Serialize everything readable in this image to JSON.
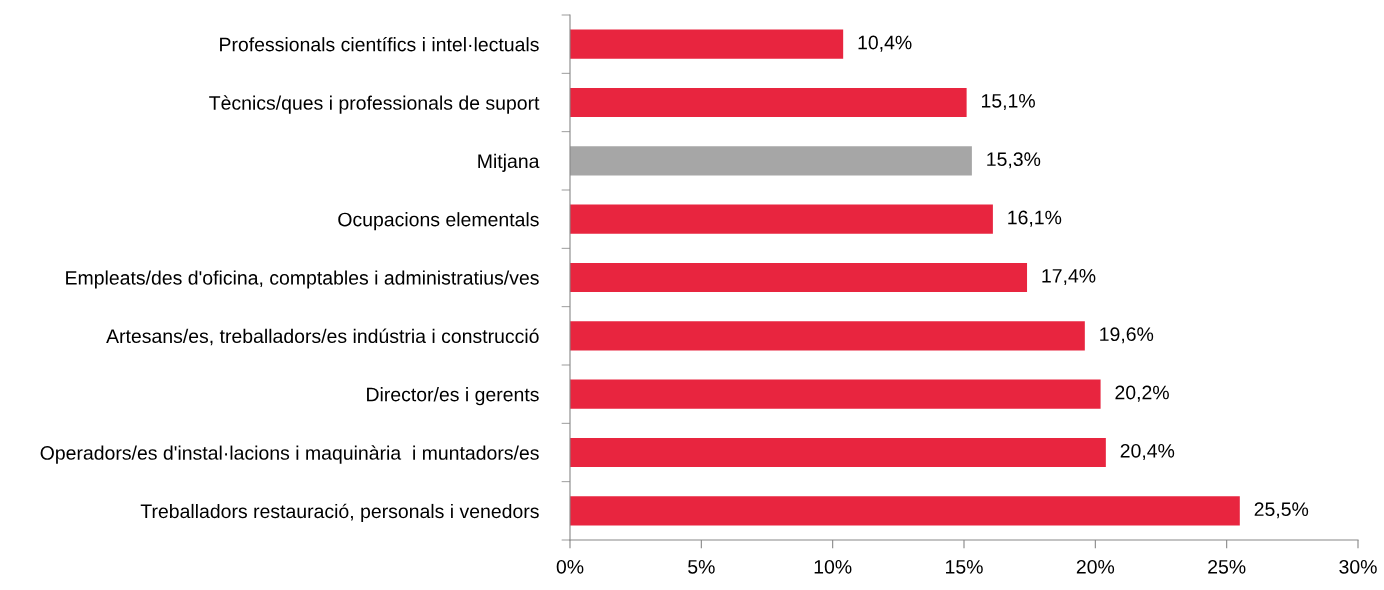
{
  "chart_data": {
    "type": "bar",
    "orientation": "horizontal",
    "categories": [
      "Professionals científics i intel·lectuals",
      "Tècnics/ques i professionals de suport",
      "Mitjana",
      "Ocupacions elementals",
      "Empleats/des d'oficina, comptables i administratius/ves",
      "Artesans/es, treballadors/es indústria i construcció",
      "Director/es i gerents",
      "Operadors/es d'instal·lacions i maquinària  i muntadors/es",
      "Treballadors restauració, personals i venedors"
    ],
    "values": [
      10.4,
      15.1,
      15.3,
      16.1,
      17.4,
      19.6,
      20.2,
      20.4,
      25.5
    ],
    "colors": [
      "#e8253f",
      "#e8253f",
      "#a6a6a6",
      "#e8253f",
      "#e8253f",
      "#e8253f",
      "#e8253f",
      "#e8253f",
      "#e8253f"
    ],
    "value_labels": [
      "10,4%",
      "15,1%",
      "15,3%",
      "16,1%",
      "17,4%",
      "19,6%",
      "20,2%",
      "20,4%",
      "25,5%"
    ],
    "xlim": [
      0,
      30
    ],
    "xticks": [
      {
        "value": 0,
        "label": "0%"
      },
      {
        "value": 5,
        "label": "5%"
      },
      {
        "value": 10,
        "label": "10%"
      },
      {
        "value": 15,
        "label": "15%"
      },
      {
        "value": 20,
        "label": "20%"
      },
      {
        "value": 25,
        "label": "25%"
      },
      {
        "value": 30,
        "label": "30%"
      }
    ],
    "grid": false,
    "legend": false
  }
}
